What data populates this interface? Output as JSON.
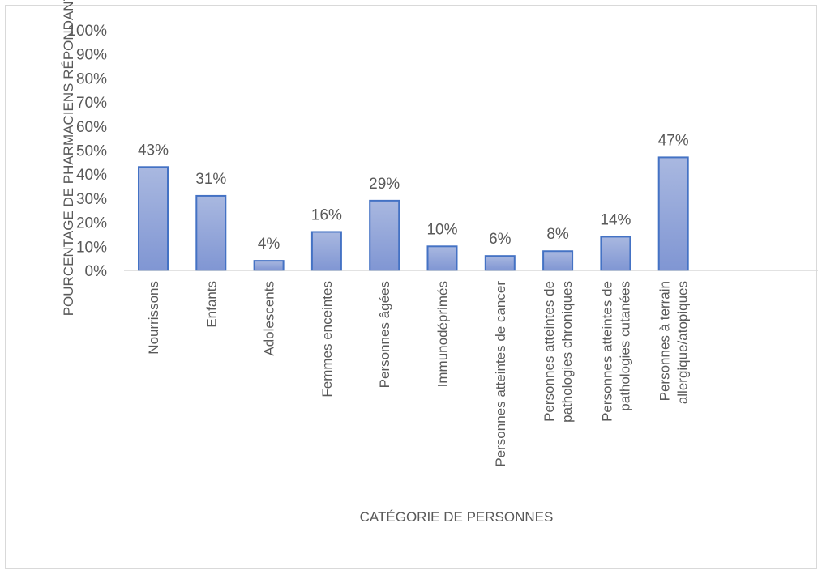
{
  "chart_data": {
    "type": "bar",
    "categories": [
      [
        "Nourrissons"
      ],
      [
        "Enfants"
      ],
      [
        "Adolescents"
      ],
      [
        "Femmes enceintes"
      ],
      [
        "Personnes âgées"
      ],
      [
        "Immunodéprimés"
      ],
      [
        "Personnes atteintes de cancer"
      ],
      [
        "Personnes atteintes de",
        "pathologies chroniques"
      ],
      [
        "Personnes atteintes de",
        "pathologies cutanées"
      ],
      [
        "Personnes à terrain",
        "allergique/atopiques"
      ]
    ],
    "values": [
      43,
      31,
      4,
      16,
      29,
      10,
      6,
      8,
      14,
      47
    ],
    "data_labels": [
      "43%",
      "31%",
      "4%",
      "16%",
      "29%",
      "10%",
      "6%",
      "8%",
      "14%",
      "47%"
    ],
    "xlabel": "CATÉGORIE DE PERSONNES",
    "ylabel": "POURCENTAGE DE PHARMACIENS RÉPONDANTS",
    "ylim": [
      0,
      100
    ],
    "yticks": [
      "0%",
      "10%",
      "20%",
      "30%",
      "40%",
      "50%",
      "60%",
      "70%",
      "80%",
      "90%",
      "100%"
    ],
    "grid": false,
    "legend": "none",
    "colors": {
      "bar_top": "#a9b8e0",
      "bar_bottom": "#8096d3",
      "bar_border": "#4472c4",
      "axis": "#d9d9d9",
      "text": "#595959"
    }
  }
}
